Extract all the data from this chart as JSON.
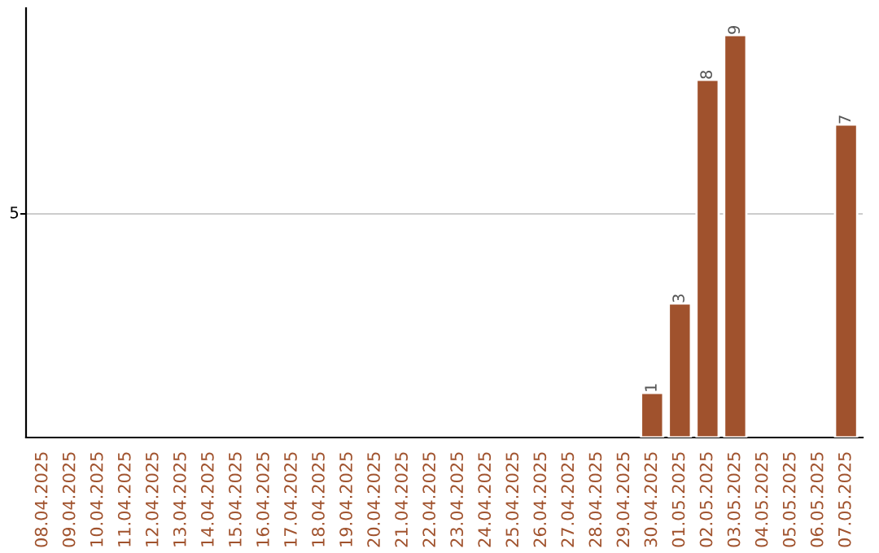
{
  "chart_data": {
    "type": "bar",
    "categories": [
      "08.04.2025",
      "09.04.2025",
      "10.04.2025",
      "11.04.2025",
      "12.04.2025",
      "13.04.2025",
      "14.04.2025",
      "15.04.2025",
      "16.04.2025",
      "17.04.2025",
      "18.04.2025",
      "19.04.2025",
      "20.04.2025",
      "21.04.2025",
      "22.04.2025",
      "23.04.2025",
      "24.04.2025",
      "25.04.2025",
      "26.04.2025",
      "27.04.2025",
      "28.04.2025",
      "29.04.2025",
      "30.04.2025",
      "01.05.2025",
      "02.05.2025",
      "03.05.2025",
      "04.05.2025",
      "05.05.2025",
      "06.05.2025",
      "07.05.2025"
    ],
    "values": [
      null,
      null,
      null,
      null,
      null,
      null,
      null,
      null,
      null,
      null,
      null,
      null,
      null,
      null,
      null,
      null,
      null,
      null,
      null,
      null,
      null,
      null,
      1,
      3,
      8,
      9,
      null,
      null,
      null,
      7
    ],
    "data_labels": true,
    "color": "#a0522d",
    "ylim": [
      0,
      9.6
    ],
    "ref_lines": [
      {
        "axis": "y",
        "value": 5,
        "label": "5",
        "color": "#cccccc"
      }
    ]
  }
}
